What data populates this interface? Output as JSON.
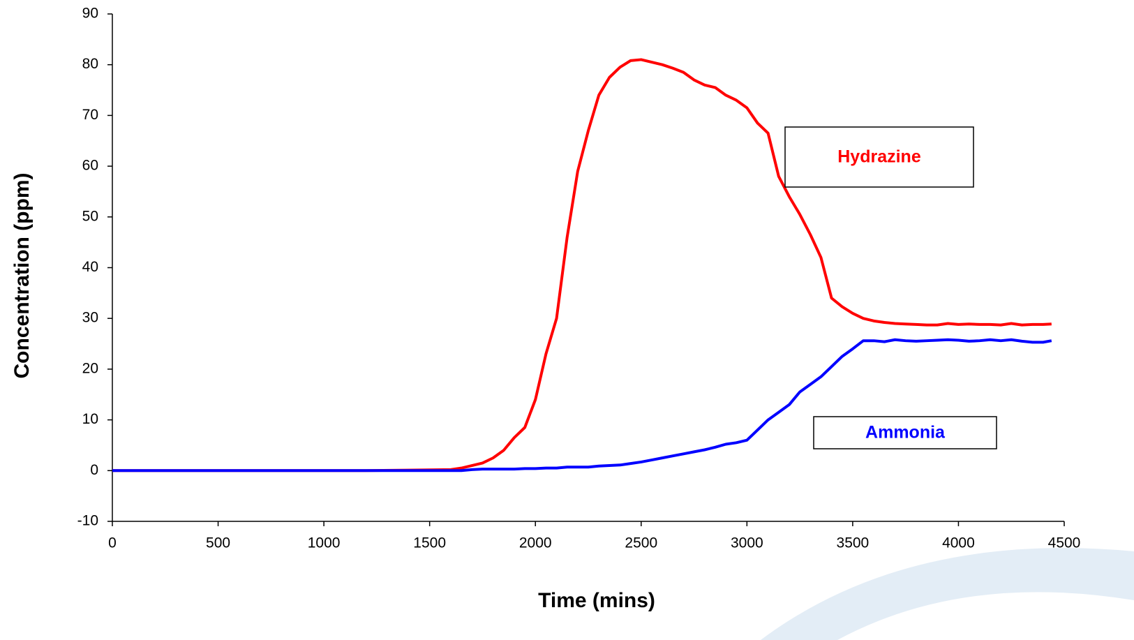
{
  "chart_data": {
    "type": "line",
    "x_label": "Time (mins)",
    "y_label": "Concentration (ppm)",
    "x": [
      0,
      200,
      400,
      600,
      800,
      1000,
      1200,
      1400,
      1600,
      1650,
      1700,
      1750,
      1800,
      1850,
      1900,
      1950,
      2000,
      2050,
      2100,
      2150,
      2200,
      2250,
      2300,
      2350,
      2400,
      2450,
      2500,
      2550,
      2600,
      2650,
      2700,
      2750,
      2800,
      2850,
      2900,
      2950,
      3000,
      3050,
      3100,
      3150,
      3200,
      3250,
      3300,
      3350,
      3400,
      3450,
      3500,
      3550,
      3600,
      3650,
      3700,
      3750,
      3800,
      3850,
      3900,
      3950,
      4000,
      4050,
      4100,
      4150,
      4200,
      4250,
      4300,
      4350,
      4400,
      4440
    ],
    "series": [
      {
        "name": "Hydrazine",
        "color": "#ff0000",
        "values": [
          0,
          0,
          0,
          0,
          0,
          0,
          0,
          0.1,
          0.2,
          0.5,
          1,
          1.5,
          2.5,
          4,
          6.5,
          8.5,
          14,
          23,
          30,
          46,
          59,
          67,
          74,
          77.5,
          79.5,
          80.8,
          81,
          80.5,
          80,
          79.3,
          78.5,
          77,
          76,
          75.5,
          74,
          73,
          71.5,
          68.5,
          66.5,
          58,
          54,
          50.5,
          46.5,
          42,
          34,
          32.3,
          31,
          30,
          29.5,
          29.2,
          29,
          28.9,
          28.8,
          28.7,
          28.7,
          29,
          28.8,
          28.9,
          28.8,
          28.8,
          28.7,
          29,
          28.7,
          28.8,
          28.8,
          28.9
        ]
      },
      {
        "name": "Ammonia",
        "color": "#0000ff",
        "values": [
          0,
          0,
          0,
          0,
          0,
          0,
          0,
          0,
          0,
          0,
          0.2,
          0.3,
          0.3,
          0.3,
          0.3,
          0.4,
          0.4,
          0.5,
          0.5,
          0.7,
          0.7,
          0.7,
          0.9,
          1,
          1.1,
          1.4,
          1.7,
          2.1,
          2.5,
          2.9,
          3.3,
          3.7,
          4.1,
          4.6,
          5.2,
          5.5,
          6,
          8,
          10,
          11.5,
          13,
          15.5,
          17,
          18.5,
          20.5,
          22.5,
          24,
          25.6,
          25.6,
          25.4,
          25.8,
          25.6,
          25.5,
          25.6,
          25.7,
          25.8,
          25.7,
          25.5,
          25.6,
          25.8,
          25.6,
          25.8,
          25.5,
          25.3,
          25.3,
          25.6
        ]
      }
    ],
    "xlim": [
      0,
      4500
    ],
    "xticks": [
      0,
      500,
      1000,
      1500,
      2000,
      2500,
      3000,
      3500,
      4000,
      4500
    ],
    "ylim": [
      -10,
      90
    ],
    "yticks": [
      -10,
      0,
      10,
      20,
      30,
      40,
      50,
      60,
      70,
      80,
      90
    ],
    "grid": false
  }
}
